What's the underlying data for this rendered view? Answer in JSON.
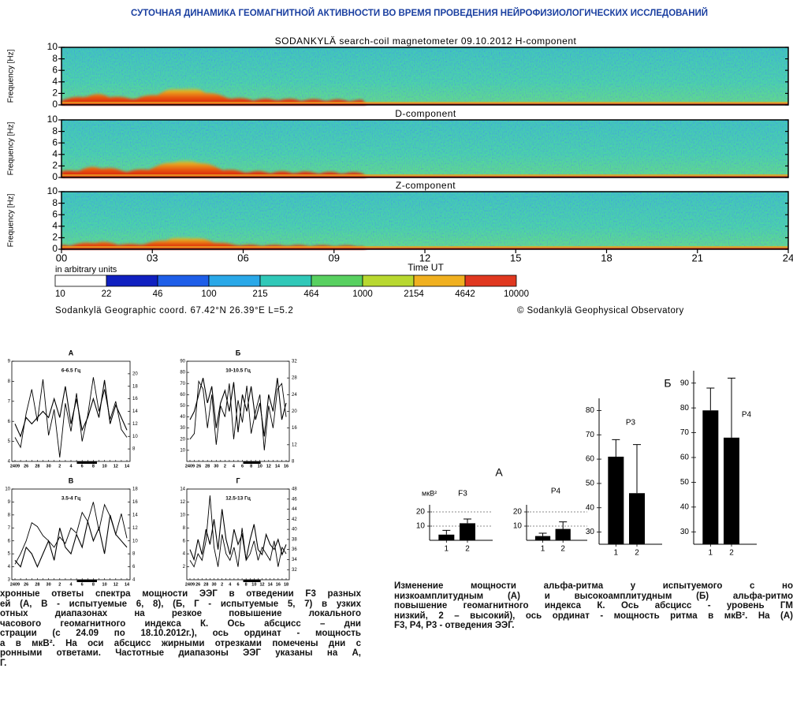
{
  "header": {
    "title": "СУТОЧНАЯ ДИНАМИКА ГЕОМАГНИТНОЙ АКТИВНОСТИ ВО ВРЕМЯ ПРОВЕДЕНИЯ НЕЙРОФИЗИОЛОГИЧЕСКИХ ИССЛЕДОВАНИЙ"
  },
  "spectrogram": {
    "panels": [
      {
        "title": "SODANKYLÄ  search-coil magnetometer  09.10.2012  H-component"
      },
      {
        "title": "D-component"
      },
      {
        "title": "Z-component"
      }
    ],
    "y_label": "Frequency [Hz]",
    "ylim": [
      0,
      10
    ],
    "yticks": [
      0,
      2,
      4,
      6,
      8,
      10
    ],
    "xlim": [
      0,
      24
    ],
    "xticks": [
      {
        "value": 0,
        "label": "00"
      },
      {
        "value": 3,
        "label": "03"
      },
      {
        "value": 6,
        "label": "06"
      },
      {
        "value": 9,
        "label": "09"
      },
      12,
      15,
      18,
      21,
      24
    ],
    "x_label": "Time UT",
    "units_label": "in arbitrary units",
    "colorbar": [
      10,
      22,
      46,
      100,
      215,
      464,
      1000,
      2154,
      4642,
      10000
    ],
    "footer_left": "Sodankylä Geographic coord. 67.42°N 26.39°E L=5.2",
    "footer_right": "© Sodankylä Geophysical Observatory"
  },
  "chart_data": [
    {
      "type": "line",
      "title": "А",
      "subtitle": "6-6.5 Гц",
      "categories": [
        "2409",
        null,
        "26",
        null,
        "28",
        null,
        "30",
        null,
        "2",
        null,
        "4",
        null,
        "6",
        null,
        "8",
        null,
        "10",
        null,
        "12",
        null,
        "14"
      ],
      "ylim": [
        4,
        9
      ],
      "yticks": [
        4,
        5,
        6,
        7,
        8,
        9
      ],
      "y2lim": [
        6,
        22
      ],
      "y2ticks": [
        8,
        10,
        12,
        14,
        16,
        18,
        20
      ],
      "series": [
        {
          "color": "#000000",
          "values": [
            5.2,
            4.7,
            6.4,
            7.6,
            6.0,
            8.1,
            5.3,
            6.6,
            4.2,
            6.9,
            5.5,
            7.4,
            5.0,
            6.3,
            8.2,
            6.5,
            7.6,
            6.1,
            7.0,
            5.6,
            5.2
          ]
        },
        {
          "color": "#000000",
          "axis": "y2",
          "values": [
            12,
            10,
            13,
            12,
            13,
            14,
            13,
            16,
            13,
            18,
            12,
            16,
            11,
            13,
            16,
            13,
            19,
            12,
            15,
            13,
            11
          ]
        }
      ]
    },
    {
      "type": "line",
      "title": "Б",
      "subtitle": "10-10.5 Гц",
      "categories": [
        "2409",
        null,
        "26",
        null,
        "28",
        null,
        "30",
        null,
        "2",
        null,
        "4",
        null,
        "6",
        null,
        "8",
        null,
        "10",
        null,
        "12",
        null,
        "14",
        null,
        "16"
      ],
      "ylim": [
        0,
        90
      ],
      "yticks": [
        10,
        20,
        30,
        40,
        50,
        60,
        70,
        80,
        90
      ],
      "y2lim": [
        8,
        32
      ],
      "y2ticks": [
        8,
        12,
        16,
        20,
        24,
        28,
        32
      ],
      "series": [
        {
          "color": "#000000",
          "values": [
            20,
            25,
            72,
            65,
            30,
            60,
            15,
            50,
            40,
            70,
            20,
            55,
            35,
            68,
            25,
            45,
            60,
            10,
            50,
            30,
            65,
            70,
            40
          ]
        },
        {
          "color": "#000000",
          "axis": "y2",
          "values": [
            18,
            20,
            24,
            28,
            22,
            26,
            16,
            22,
            25,
            20,
            27,
            15,
            24,
            20,
            26,
            18,
            22,
            14,
            24,
            20,
            28,
            18,
            22
          ]
        }
      ]
    },
    {
      "type": "line",
      "title": "В",
      "subtitle": "3.5-4 Гц",
      "categories": [
        "2409",
        null,
        "26",
        null,
        "28",
        null,
        "30",
        null,
        "2",
        null,
        "4",
        null,
        "6",
        null,
        "8",
        null,
        "10",
        null,
        "12",
        null,
        "14"
      ],
      "ylim": [
        3,
        10
      ],
      "yticks": [
        3,
        4,
        5,
        6,
        7,
        8,
        9,
        10
      ],
      "y2lim": [
        4,
        18
      ],
      "y2ticks": [
        4,
        6,
        8,
        10,
        12,
        14,
        16,
        18
      ],
      "series": [
        {
          "color": "#000000",
          "values": [
            4.2,
            5.0,
            6.0,
            7.4,
            7.1,
            6.4,
            6.0,
            5.5,
            6.3,
            5.8,
            7.0,
            6.6,
            8.2,
            7.5,
            9.0,
            6.8,
            8.8,
            7.9,
            6.5,
            8.1,
            6.2
          ]
        },
        {
          "color": "#000000",
          "axis": "y2",
          "values": [
            7,
            6,
            9,
            8,
            6,
            8,
            10,
            7,
            12,
            9,
            8,
            11,
            9,
            13,
            10,
            12,
            8,
            14,
            11,
            10,
            9
          ]
        }
      ]
    },
    {
      "type": "line",
      "title": "Г",
      "subtitle": "12.5-13 Гц",
      "categories": [
        "2409",
        null,
        "26",
        null,
        "28",
        null,
        "30",
        null,
        "2",
        null,
        "4",
        null,
        "6",
        null,
        "8",
        null,
        "10",
        null,
        "12",
        null,
        "14",
        null,
        "16",
        null,
        "18"
      ],
      "ylim": [
        0,
        14
      ],
      "yticks": [
        2,
        4,
        6,
        8,
        10,
        12,
        14
      ],
      "y2lim": [
        30,
        48
      ],
      "y2ticks": [
        32,
        34,
        36,
        38,
        40,
        42,
        44,
        46,
        48
      ],
      "series": [
        {
          "color": "#000000",
          "values": [
            3,
            2,
            4,
            3,
            6,
            13,
            5,
            2,
            7,
            4,
            3,
            5,
            2,
            8,
            3,
            4,
            6,
            3,
            5,
            4,
            3,
            6,
            2,
            5,
            4
          ]
        },
        {
          "color": "#000000",
          "axis": "y2",
          "values": [
            36,
            34,
            38,
            35,
            40,
            37,
            42,
            36,
            44,
            38,
            35,
            40,
            37,
            39,
            34,
            38,
            41,
            36,
            35,
            39,
            37,
            36,
            38,
            35,
            37
          ]
        }
      ]
    },
    {
      "type": "bar",
      "panel": "А",
      "unit": "мкВ²",
      "title": "F3",
      "categories": [
        "1",
        "2"
      ],
      "values": [
        4,
        12
      ],
      "errors": [
        3,
        3
      ],
      "ylim": [
        0,
        25
      ],
      "yticks": [
        10,
        20
      ],
      "grid": true,
      "color": "#000000"
    },
    {
      "type": "bar",
      "title": "P4",
      "categories": [
        "1",
        "2"
      ],
      "values": [
        3,
        8
      ],
      "errors": [
        2,
        5
      ],
      "ylim": [
        0,
        25
      ],
      "yticks": [
        10,
        20
      ],
      "grid": true,
      "color": "#000000"
    },
    {
      "type": "bar",
      "panel": "Б",
      "title": "P3",
      "categories": [
        "1",
        "2"
      ],
      "values": [
        61,
        46
      ],
      "errors": [
        7,
        20
      ],
      "ylim": [
        25,
        85
      ],
      "yticks": [
        30,
        40,
        50,
        60,
        70,
        80
      ],
      "grid": false,
      "color": "#000000"
    },
    {
      "type": "bar",
      "title": "P4",
      "categories": [
        "1",
        "2"
      ],
      "values": [
        79,
        68
      ],
      "errors": [
        9,
        24
      ],
      "ylim": [
        25,
        95
      ],
      "yticks": [
        30,
        40,
        50,
        60,
        70,
        80,
        90
      ],
      "grid": false,
      "color": "#000000"
    }
  ],
  "left_caption": [
    "хронные ответы спектра мощности ЭЭГ в отведении F3 разных",
    "ей (А, В - испытуемые 6, 8), (Б, Г - испытуемые 5, 7) в узких",
    "отных диапазонах на резкое повышение локального",
    "часового геомагнитного индекса К. Ось абсцисс – дни",
    "страции (с 24.09 по 18.10.2012г.), ось ординат - мощность",
    "а в мкВ². На оси абсцисс жирными отрезками помечены дни с",
    "ронными ответами. Частотные диапазоны ЭЭГ указаны на А,",
    "Г."
  ],
  "right_caption": [
    "Изменение мощности альфа-ритма у испытуемого с но",
    "низкоамплитудным (А) и высокоамплитудным (Б) альфа-ритмо",
    "повышение геомагнитного индекса К. Ось абсцисс - уровень ГМ",
    "низкий, 2 – высокий), ось ординат - мощность ритма в мкВ². На (А)",
    "F3, P4, P3 - отведения ЭЭГ."
  ]
}
